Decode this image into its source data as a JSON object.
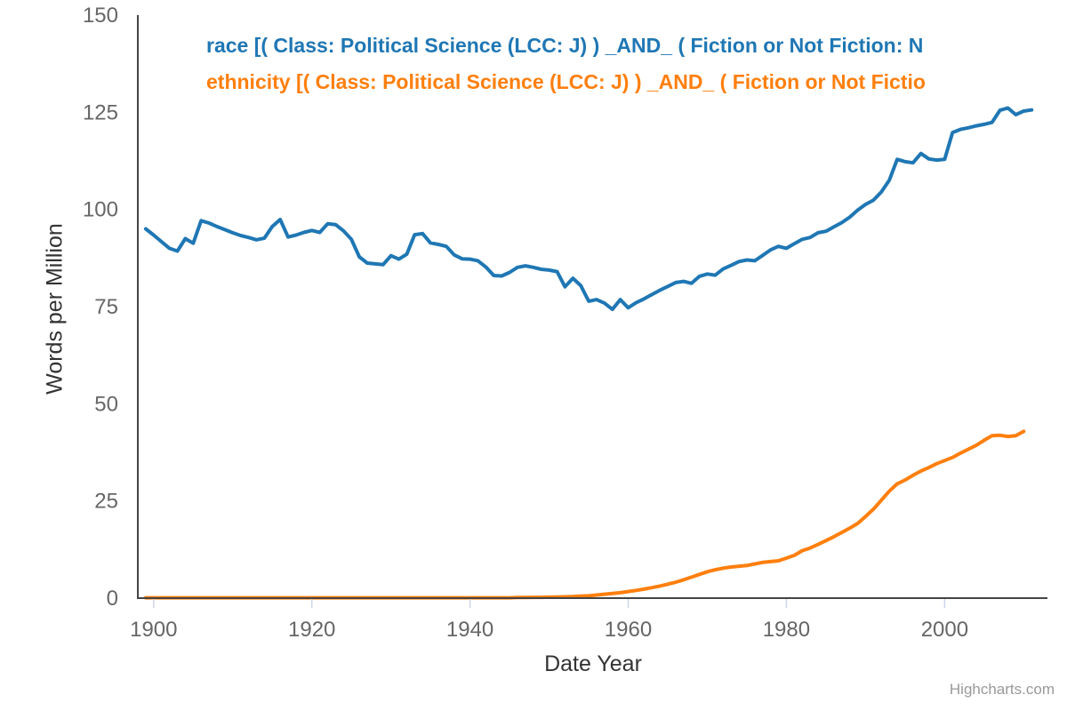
{
  "legend": {
    "items": [
      {
        "label": "race [( Class: Political Science (LCC: J) ) _AND_ ( Fiction or Not Fiction: N",
        "color": "#1f77b4"
      },
      {
        "label": "ethnicity [( Class: Political Science (LCC: J) ) _AND_ ( Fiction or Not Fictio",
        "color": "#ff7f0e"
      }
    ]
  },
  "credit": "Highcharts.com",
  "chart_data": {
    "type": "line",
    "title": "",
    "xlabel": "Date Year",
    "ylabel": "Words per Million",
    "xlim": [
      1898,
      2013
    ],
    "ylim": [
      0,
      150
    ],
    "x_ticks": [
      1900,
      1920,
      1940,
      1960,
      1980,
      2000
    ],
    "y_ticks": [
      0,
      25,
      50,
      75,
      100,
      125,
      150
    ],
    "grid": false,
    "legend_position": "top-left",
    "x_start": 1899,
    "x_end": 2011,
    "series": [
      {
        "name": "race [( Class: Political Science (LCC: J) ) _AND_ ( Fiction or Not Fiction: N",
        "color": "#1f77b4",
        "values": [
          95.0,
          93.4,
          91.7,
          90.0,
          89.3,
          92.5,
          91.3,
          97.1,
          96.5,
          95.6,
          94.8,
          94.0,
          93.3,
          92.8,
          92.2,
          92.6,
          95.6,
          97.4,
          92.9,
          93.4,
          94.1,
          94.6,
          94.1,
          96.3,
          96.1,
          94.5,
          92.3,
          87.8,
          86.2,
          86.0,
          85.8,
          88.1,
          87.2,
          88.5,
          93.5,
          93.8,
          91.4,
          91.0,
          90.5,
          88.3,
          87.3,
          87.2,
          86.8,
          85.2,
          83.0,
          82.9,
          83.8,
          85.1,
          85.5,
          85.1,
          84.6,
          84.4,
          84.0,
          80.1,
          82.3,
          80.4,
          76.4,
          76.8,
          75.9,
          74.3,
          76.8,
          74.7,
          76.0,
          77.0,
          78.1,
          79.2,
          80.2,
          81.2,
          81.5,
          81.0,
          82.8,
          83.4,
          83.1,
          84.7,
          85.6,
          86.6,
          87.0,
          86.8,
          88.2,
          89.6,
          90.5,
          90.0,
          91.2,
          92.3,
          92.8,
          94.0,
          94.4,
          95.5,
          96.6,
          98.0,
          99.8,
          101.3,
          102.4,
          104.5,
          107.5,
          112.9,
          112.3,
          112.0,
          114.4,
          113.0,
          112.7,
          112.9,
          119.8,
          120.6,
          121.0,
          121.5,
          121.9,
          122.4,
          125.5,
          126.1,
          124.4,
          125.3,
          125.6
        ]
      },
      {
        "name": "ethnicity [( Class: Political Science (LCC: J) ) _AND_ ( Fiction or Not Fictio",
        "color": "#ff7f0e",
        "values": [
          0.1,
          0.1,
          0.1,
          0.1,
          0.1,
          0.1,
          0.1,
          0.1,
          0.1,
          0.1,
          0.1,
          0.1,
          0.1,
          0.1,
          0.1,
          0.1,
          0.1,
          0.1,
          0.1,
          0.1,
          0.1,
          0.1,
          0.1,
          0.1,
          0.1,
          0.1,
          0.1,
          0.1,
          0.1,
          0.1,
          0.1,
          0.1,
          0.1,
          0.1,
          0.1,
          0.1,
          0.1,
          0.1,
          0.1,
          0.1,
          0.1,
          0.1,
          0.1,
          0.1,
          0.1,
          0.1,
          0.1,
          0.15,
          0.15,
          0.2,
          0.2,
          0.25,
          0.3,
          0.35,
          0.4,
          0.5,
          0.6,
          0.8,
          1.0,
          1.2,
          1.4,
          1.7,
          2.0,
          2.3,
          2.7,
          3.1,
          3.6,
          4.1,
          4.7,
          5.4,
          6.1,
          6.8,
          7.3,
          7.7,
          8.0,
          8.2,
          8.4,
          8.8,
          9.2,
          9.4,
          9.6,
          10.3,
          11.0,
          12.2,
          12.9,
          13.8,
          14.8,
          15.8,
          16.9,
          18.0,
          19.2,
          21.0,
          22.9,
          25.2,
          27.5,
          29.4,
          30.4,
          31.6,
          32.7,
          33.6,
          34.6,
          35.4,
          36.2,
          37.3,
          38.3,
          39.3,
          40.6,
          41.8,
          41.9,
          41.6,
          41.8,
          42.9
        ]
      }
    ]
  }
}
